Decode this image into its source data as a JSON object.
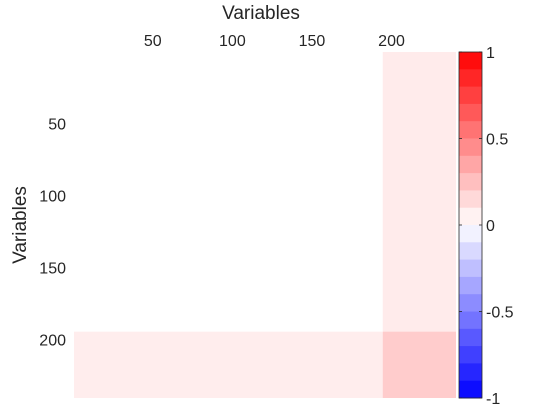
{
  "chart_data": {
    "type": "heatmap",
    "xlabel": "Variables",
    "ylabel": "Variables",
    "x_axis_position": "top",
    "x_ticks": [
      50,
      100,
      150,
      200
    ],
    "y_ticks": [
      50,
      100,
      150,
      200
    ],
    "n_variables": 240,
    "colorbar": {
      "position": "right",
      "min": -1,
      "max": 1,
      "ticks": [
        -1,
        -0.5,
        0,
        0.5,
        1
      ],
      "tick_labels": [
        "-1",
        "-0.5",
        "0",
        "0.5",
        "1"
      ],
      "levels": 20,
      "low_color": "#0000ff",
      "mid_color": "#ffffff",
      "high_color": "#ff0000"
    },
    "blocks": [
      {
        "name": "near-zero-background",
        "x_range": [
          1,
          240
        ],
        "y_range": [
          1,
          240
        ],
        "value": 0.0
      },
      {
        "name": "right-column-band",
        "x_range": [
          195,
          240
        ],
        "y_range": [
          1,
          195
        ],
        "value": 0.08
      },
      {
        "name": "bottom-row-band",
        "x_range": [
          1,
          195
        ],
        "y_range": [
          195,
          240
        ],
        "value": 0.07
      },
      {
        "name": "bottom-right-block",
        "x_range": [
          195,
          240
        ],
        "y_range": [
          195,
          240
        ],
        "value": 0.2
      }
    ]
  }
}
